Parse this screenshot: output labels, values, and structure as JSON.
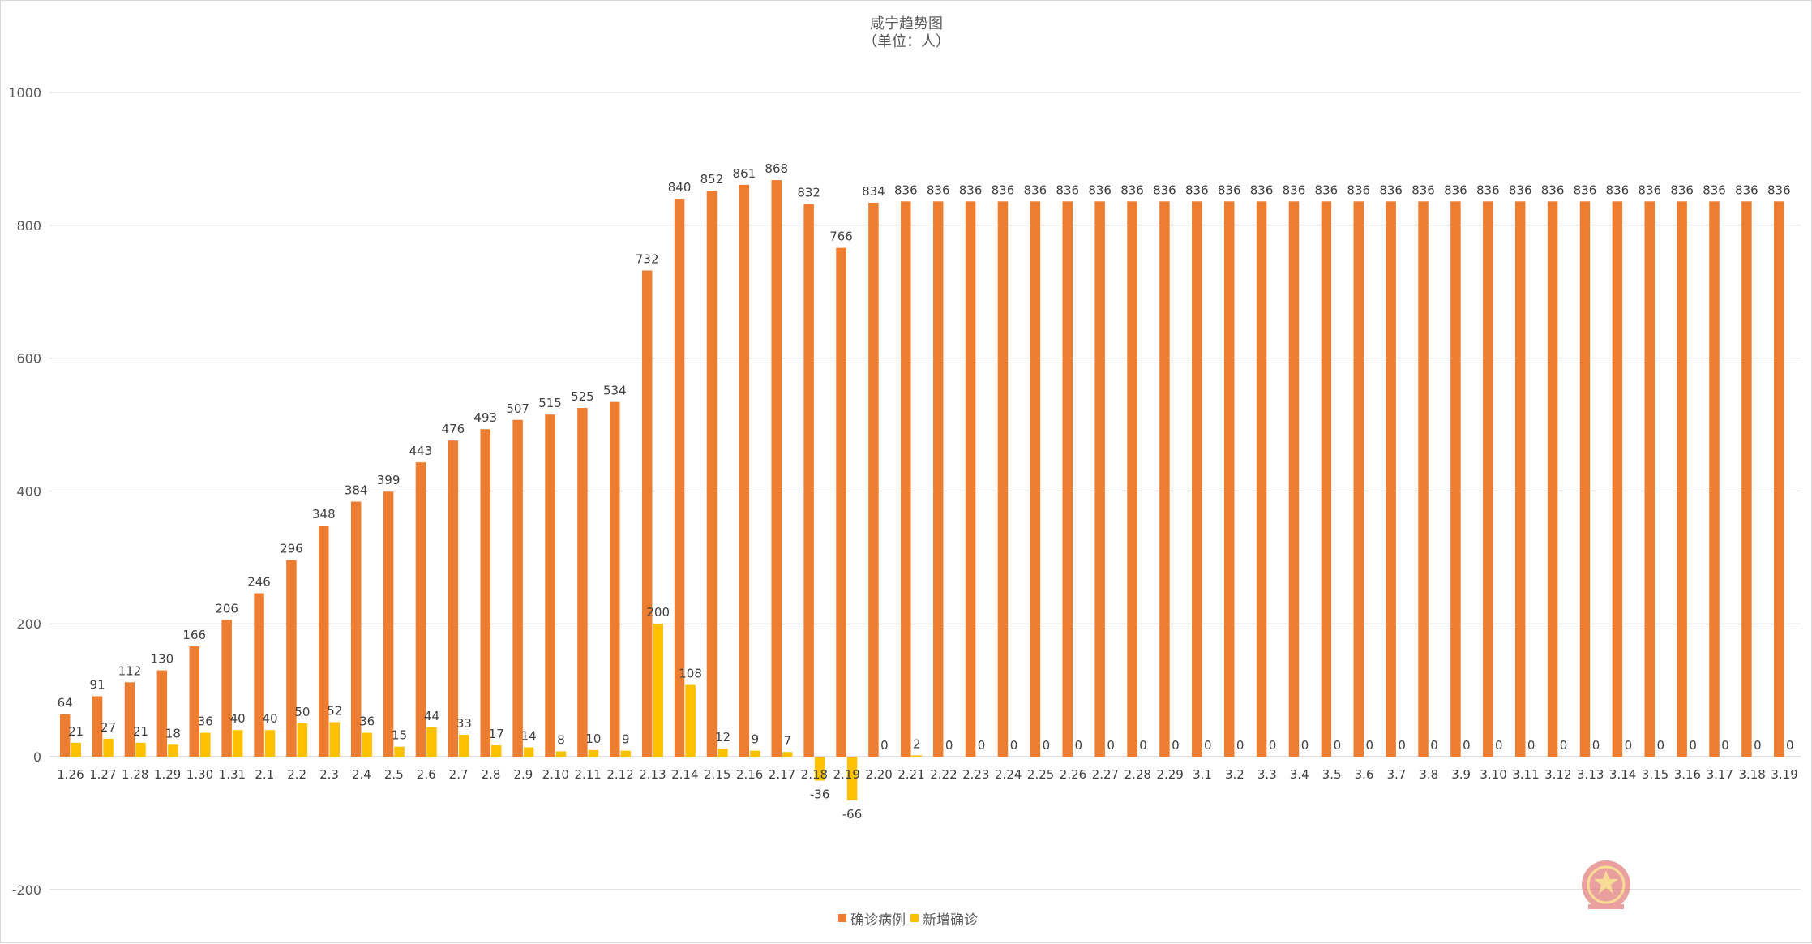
{
  "chart_data": {
    "type": "bar",
    "title": "咸宁趋势图",
    "subtitle": "（单位：人）",
    "xlabel": "",
    "ylabel": "",
    "ylim": [
      -200,
      1000
    ],
    "yticks": [
      -200,
      0,
      200,
      400,
      600,
      800,
      1000
    ],
    "grid": true,
    "legend_position": "bottom",
    "categories": [
      "1.26",
      "1.27",
      "1.28",
      "1.29",
      "1.30",
      "1.31",
      "2.1",
      "2.2",
      "2.3",
      "2.4",
      "2.5",
      "2.6",
      "2.7",
      "2.8",
      "2.9",
      "2.10",
      "2.11",
      "2.12",
      "2.13",
      "2.14",
      "2.15",
      "2.16",
      "2.17",
      "2.18",
      "2.19",
      "2.20",
      "2.21",
      "2.22",
      "2.23",
      "2.24",
      "2.25",
      "2.26",
      "2.27",
      "2.28",
      "2.29",
      "3.1",
      "3.2",
      "3.3",
      "3.4",
      "3.5",
      "3.6",
      "3.7",
      "3.8",
      "3.9",
      "3.10",
      "3.11",
      "3.12",
      "3.13",
      "3.14",
      "3.15",
      "3.16",
      "3.17",
      "3.18",
      "3.19"
    ],
    "series": [
      {
        "name": "确诊病例",
        "color": "#ED7D31",
        "values": [
          64,
          91,
          112,
          130,
          166,
          206,
          246,
          296,
          348,
          384,
          399,
          443,
          476,
          493,
          507,
          515,
          525,
          534,
          732,
          840,
          852,
          861,
          868,
          832,
          766,
          834,
          836,
          836,
          836,
          836,
          836,
          836,
          836,
          836,
          836,
          836,
          836,
          836,
          836,
          836,
          836,
          836,
          836,
          836,
          836,
          836,
          836,
          836,
          836,
          836,
          836,
          836,
          836,
          836
        ]
      },
      {
        "name": "新增确诊",
        "color": "#FFC000",
        "values": [
          21,
          27,
          21,
          18,
          36,
          40,
          40,
          50,
          52,
          36,
          15,
          44,
          33,
          17,
          14,
          8,
          10,
          9,
          200,
          108,
          12,
          9,
          7,
          -36,
          -66,
          0,
          2,
          0,
          0,
          0,
          0,
          0,
          0,
          0,
          0,
          0,
          0,
          0,
          0,
          0,
          0,
          0,
          0,
          0,
          0,
          0,
          0,
          0,
          0,
          0,
          0,
          0,
          0,
          0
        ]
      }
    ]
  },
  "emblem_icon": "national-emblem-watermark"
}
